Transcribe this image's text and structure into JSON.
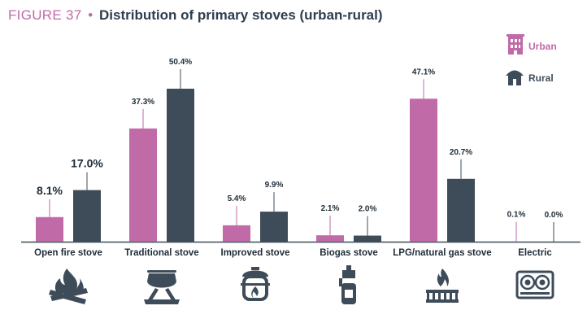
{
  "figure": {
    "label": "FIGURE 37",
    "separator": "•",
    "title": "Distribution of primary stoves (urban-rural)"
  },
  "colors": {
    "urban": "#c16aa8",
    "rural": "#3e4c5a",
    "axis": "#3e4c5a",
    "title": "#2d3e4e"
  },
  "legend": {
    "urban": {
      "label": "Urban",
      "icon": "building-icon"
    },
    "rural": {
      "label": "Rural",
      "icon": "hut-icon"
    }
  },
  "chart_data": {
    "type": "bar",
    "title": "Distribution of primary stoves (urban-rural)",
    "categories": [
      "Open fire stove",
      "Traditional stove",
      "Improved stove",
      "Biogas stove",
      "LPG/natural gas stove",
      "Electric"
    ],
    "series": [
      {
        "name": "Urban",
        "values": [
          8.1,
          37.3,
          5.4,
          2.1,
          47.1,
          0.1
        ],
        "labels": [
          "8.1%",
          "37.3%",
          "5.4%",
          "2.1%",
          "47.1%",
          "0.1%"
        ]
      },
      {
        "name": "Rural",
        "values": [
          17.0,
          50.4,
          9.9,
          2.0,
          20.7,
          0.0
        ],
        "labels": [
          "17.0%",
          "50.4%",
          "9.9%",
          "2.0%",
          "20.7%",
          "0.0%"
        ]
      }
    ],
    "category_icons": [
      "campfire-icon",
      "cooking-pot-icon",
      "improved-stove-icon",
      "gas-canister-stove-icon",
      "gas-burner-icon",
      "electric-hob-icon"
    ],
    "ylim": [
      0,
      55
    ],
    "legend_position": "top-right",
    "grid": false
  }
}
